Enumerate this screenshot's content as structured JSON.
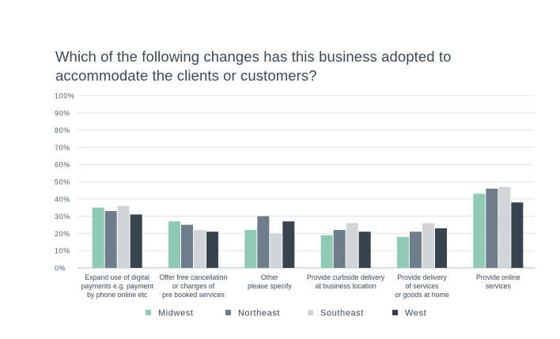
{
  "chart_data": {
    "type": "bar",
    "title": [
      "Which of the following changes has this business adopted to",
      "accommodate the clients or customers?"
    ],
    "categories": [
      [
        "Expand use of digital",
        "payments e.g. payment",
        "by phone online etc"
      ],
      [
        "Offer free cancellation",
        "or changes of",
        "pre booked services"
      ],
      [
        "Other",
        "please specify"
      ],
      [
        "Provide curbside delivery",
        "at business location"
      ],
      [
        "Provide delivery",
        "of services",
        "or goods at home"
      ],
      [
        "Provide online",
        "services"
      ]
    ],
    "series": [
      {
        "name": "Midwest",
        "color": "#8fcab5",
        "values": [
          35,
          27,
          22,
          19,
          18,
          43
        ]
      },
      {
        "name": "Northeast",
        "color": "#6e7d8c",
        "values": [
          33,
          25,
          30,
          22,
          21,
          46
        ]
      },
      {
        "name": "Southeast",
        "color": "#d1d5d7",
        "values": [
          36,
          22,
          20,
          26,
          26,
          47
        ]
      },
      {
        "name": "West",
        "color": "#37444f",
        "values": [
          31,
          21,
          27,
          21,
          23,
          38
        ]
      }
    ],
    "ylim": [
      0,
      100
    ],
    "yticks": [
      "0%",
      "10%",
      "20%",
      "30%",
      "40%",
      "50%",
      "60%",
      "70%",
      "80%",
      "90%",
      "100%"
    ],
    "grid": true,
    "legend": "bottom"
  }
}
